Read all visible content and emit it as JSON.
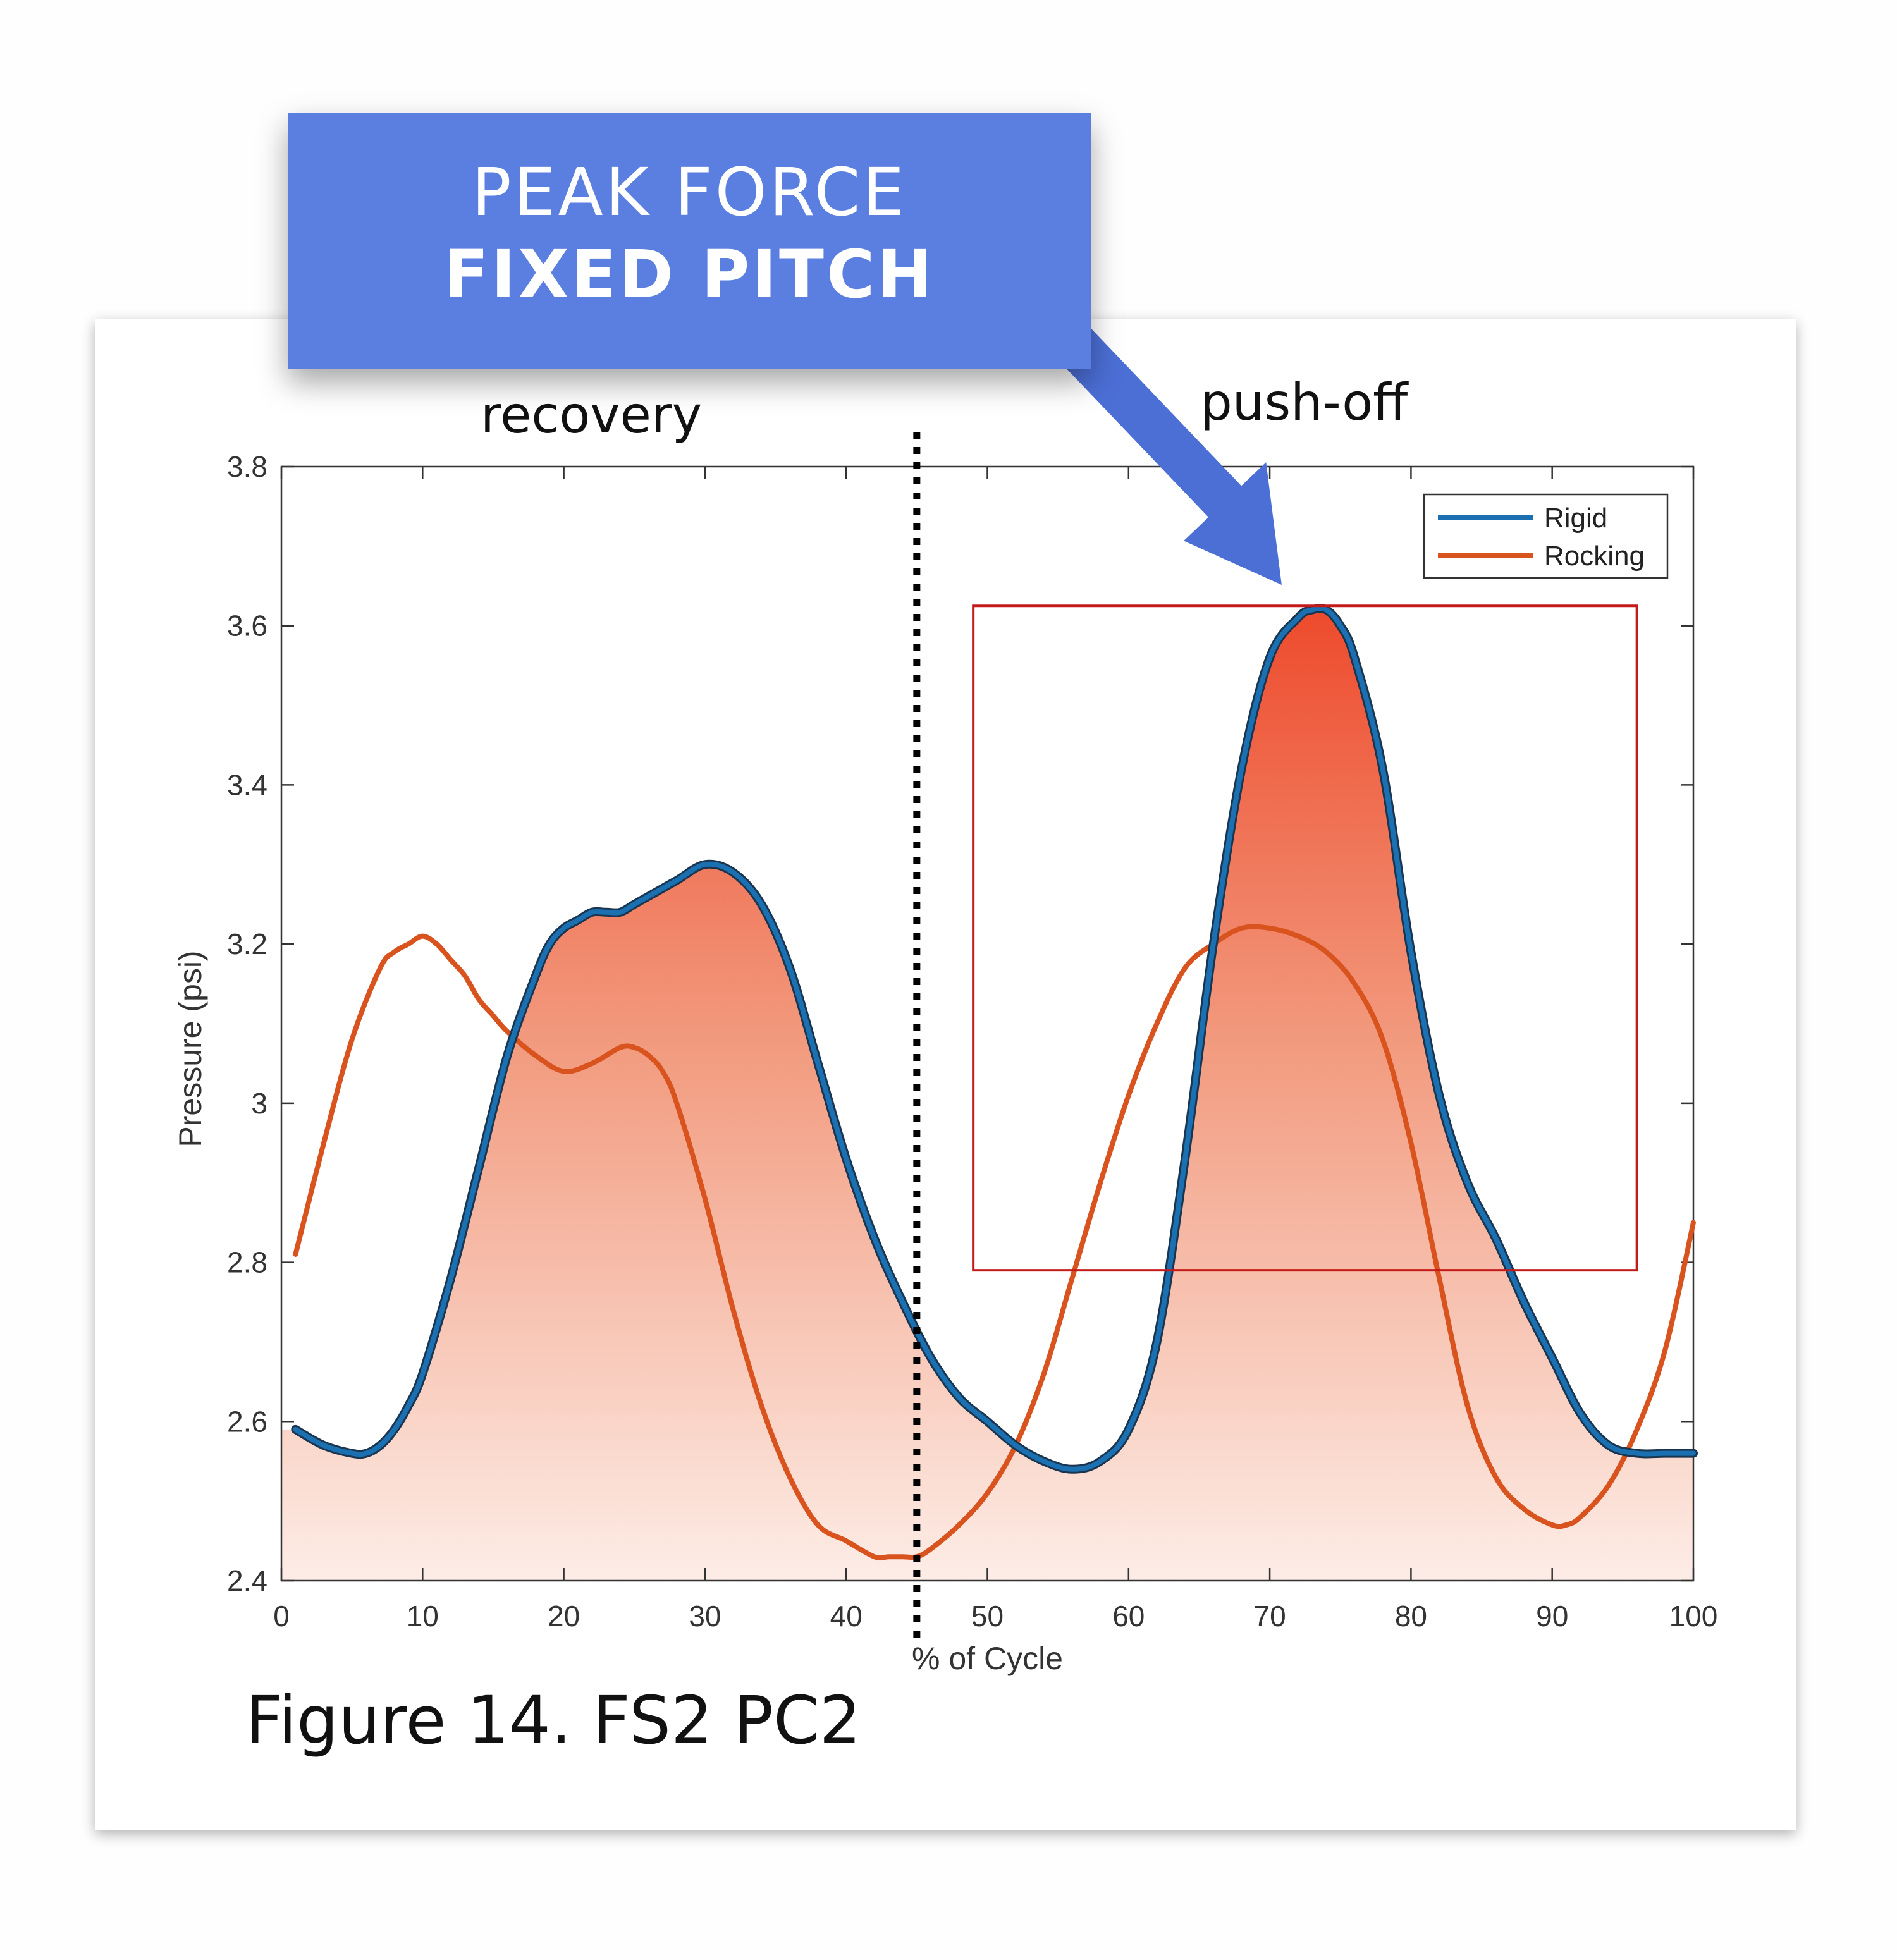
{
  "callout": {
    "line1": "PEAK FORCE",
    "line2": "FIXED PITCH",
    "color": "#5a7fe0"
  },
  "annotations": {
    "recovery": "recovery",
    "pushoff": "push-off",
    "phase_boundary_x": 45,
    "highlight_box": {
      "x": [
        49,
        96
      ],
      "y": [
        2.79,
        3.625
      ],
      "color": "#c41a1a"
    }
  },
  "caption": "Figure 14. FS2 PC2",
  "chart_data": {
    "type": "line",
    "xlabel": "% of Cycle",
    "ylabel": "Pressure (psi)",
    "xlim": [
      0,
      100
    ],
    "ylim": [
      2.4,
      3.8
    ],
    "x_ticks": [
      "0",
      "10",
      "20",
      "30",
      "40",
      "50",
      "60",
      "70",
      "80",
      "90",
      "100"
    ],
    "y_ticks": [
      "2.4",
      "2.6",
      "2.8",
      "3",
      "3.2",
      "3.4",
      "3.6",
      "3.8"
    ],
    "grid": false,
    "legend": "top-right",
    "fill_under": "Rigid",
    "series": [
      {
        "name": "Rigid",
        "color": "#1a70b0",
        "x": [
          1,
          3,
          5,
          6,
          7,
          8,
          9,
          10,
          12,
          14,
          16,
          18,
          19,
          20,
          21,
          22,
          23,
          24,
          25,
          26,
          28,
          30,
          32,
          34,
          36,
          38,
          40,
          42,
          44,
          46,
          48,
          50,
          52,
          54,
          56,
          58,
          60,
          62,
          64,
          66,
          68,
          70,
          72,
          73,
          74,
          75,
          76,
          78,
          80,
          82,
          84,
          86,
          88,
          90,
          92,
          94,
          96,
          98,
          100
        ],
        "values": [
          2.59,
          2.57,
          2.56,
          2.56,
          2.57,
          2.59,
          2.62,
          2.66,
          2.78,
          2.92,
          3.06,
          3.16,
          3.2,
          3.22,
          3.23,
          3.24,
          3.24,
          3.24,
          3.25,
          3.26,
          3.28,
          3.3,
          3.29,
          3.25,
          3.17,
          3.05,
          2.93,
          2.83,
          2.75,
          2.68,
          2.63,
          2.6,
          2.57,
          2.55,
          2.54,
          2.55,
          2.59,
          2.7,
          2.93,
          3.2,
          3.42,
          3.56,
          3.61,
          3.62,
          3.62,
          3.6,
          3.56,
          3.42,
          3.19,
          3.01,
          2.9,
          2.83,
          2.75,
          2.68,
          2.61,
          2.57,
          2.56,
          2.56,
          2.56
        ]
      },
      {
        "name": "Rocking",
        "color": "#d9531e",
        "x": [
          1,
          3,
          5,
          7,
          8,
          9,
          10,
          11,
          12,
          13,
          14,
          15,
          16,
          18,
          20,
          22,
          24,
          25,
          26,
          27,
          28,
          30,
          32,
          34,
          36,
          38,
          40,
          42,
          43,
          44,
          45,
          46,
          48,
          50,
          52,
          54,
          56,
          58,
          60,
          62,
          64,
          66,
          68,
          70,
          72,
          74,
          76,
          78,
          80,
          82,
          84,
          86,
          88,
          90,
          91,
          92,
          94,
          96,
          98,
          100
        ],
        "values": [
          2.81,
          2.95,
          3.08,
          3.17,
          3.19,
          3.2,
          3.21,
          3.2,
          3.18,
          3.16,
          3.13,
          3.11,
          3.09,
          3.06,
          3.04,
          3.05,
          3.07,
          3.07,
          3.06,
          3.04,
          3.0,
          2.88,
          2.74,
          2.62,
          2.53,
          2.47,
          2.45,
          2.43,
          2.43,
          2.43,
          2.43,
          2.44,
          2.47,
          2.51,
          2.57,
          2.66,
          2.78,
          2.9,
          3.01,
          3.1,
          3.17,
          3.2,
          3.22,
          3.22,
          3.21,
          3.19,
          3.15,
          3.08,
          2.95,
          2.78,
          2.62,
          2.53,
          2.49,
          2.47,
          2.47,
          2.48,
          2.52,
          2.59,
          2.69,
          2.85
        ]
      }
    ]
  }
}
